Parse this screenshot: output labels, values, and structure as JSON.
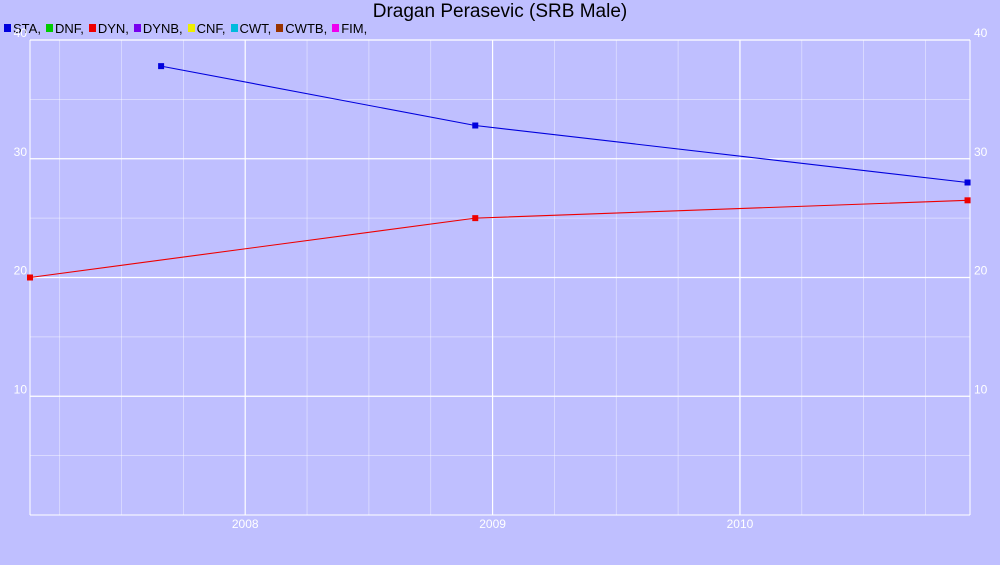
{
  "chart_data": {
    "type": "line",
    "title": "Dragan Perasevic (SRB Male)",
    "xlabel": "",
    "ylabel": "",
    "legend": [
      {
        "name": "STA",
        "label": "STA,",
        "color": "#0000dd"
      },
      {
        "name": "DNF",
        "label": "DNF,",
        "color": "#00cc00"
      },
      {
        "name": "DYN",
        "label": "DYN,",
        "color": "#ee0000"
      },
      {
        "name": "DYNB",
        "label": "DYNB,",
        "color": "#7700ee"
      },
      {
        "name": "CNF",
        "label": "CNF,",
        "color": "#eeee00"
      },
      {
        "name": "CWT",
        "label": "CWT,",
        "color": "#00bbdd"
      },
      {
        "name": "CWTB",
        "label": "CWTB,",
        "color": "#993300"
      },
      {
        "name": "FIM",
        "label": "FIM,",
        "color": "#ee00ee"
      }
    ],
    "legend_position": "top-left",
    "xlim": [
      2007.13,
      2010.93
    ],
    "ylim": [
      0,
      40
    ],
    "x_ticks": [
      {
        "value": 2008,
        "label": "2008"
      },
      {
        "value": 2009,
        "label": "2009"
      },
      {
        "value": 2010,
        "label": "2010"
      }
    ],
    "y_ticks": [
      {
        "value": 10,
        "label": "10"
      },
      {
        "value": 20,
        "label": "20"
      },
      {
        "value": 30,
        "label": "30"
      },
      {
        "value": 40,
        "label": "40"
      }
    ],
    "grid": true,
    "series": [
      {
        "name": "STA",
        "color": "#0000dd",
        "points": [
          {
            "x": 2007.66,
            "y": 37.8
          },
          {
            "x": 2008.93,
            "y": 32.8
          },
          {
            "x": 2010.92,
            "y": 28.0
          }
        ]
      },
      {
        "name": "DYN",
        "color": "#ee0000",
        "points": [
          {
            "x": 2007.13,
            "y": 20.0
          },
          {
            "x": 2008.93,
            "y": 25.0
          },
          {
            "x": 2010.92,
            "y": 26.5
          }
        ]
      }
    ]
  }
}
